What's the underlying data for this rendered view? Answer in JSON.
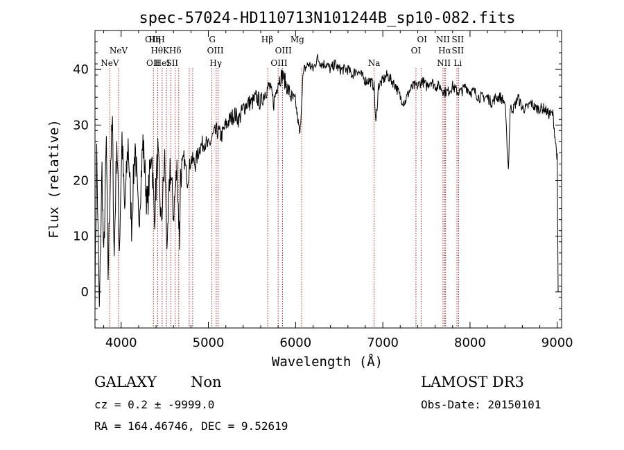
{
  "chart_data": {
    "type": "line",
    "title": "spec-57024-HD110713N101244B_sp10-082.fits",
    "xlabel": "Wavelength (Å)",
    "ylabel": "Flux (relative)",
    "xlim": [
      3700,
      9050
    ],
    "ylim": [
      -6.5,
      47
    ],
    "x_ticks": [
      4000,
      5000,
      6000,
      7000,
      8000,
      9000
    ],
    "y_ticks": [
      0,
      10,
      20,
      30,
      40
    ],
    "series": [
      {
        "name": "flux",
        "color": "#000000",
        "anchors": [
          [
            3700,
            0
          ],
          [
            3720,
            25
          ],
          [
            3750,
            -4
          ],
          [
            3780,
            22
          ],
          [
            3800,
            5
          ],
          [
            3830,
            27
          ],
          [
            3850,
            3
          ],
          [
            3880,
            24
          ],
          [
            3900,
            30
          ],
          [
            3920,
            6
          ],
          [
            3950,
            28
          ],
          [
            3980,
            8
          ],
          [
            4010,
            28
          ],
          [
            4040,
            14
          ],
          [
            4080,
            27
          ],
          [
            4120,
            12
          ],
          [
            4160,
            27
          ],
          [
            4200,
            12
          ],
          [
            4250,
            27
          ],
          [
            4300,
            15
          ],
          [
            4350,
            26
          ],
          [
            4380,
            13
          ],
          [
            4420,
            25
          ],
          [
            4460,
            12
          ],
          [
            4500,
            24
          ],
          [
            4530,
            6
          ],
          [
            4560,
            23
          ],
          [
            4600,
            14
          ],
          [
            4640,
            22
          ],
          [
            4670,
            9
          ],
          [
            4680,
            21
          ],
          [
            4720,
            24
          ],
          [
            4760,
            20
          ],
          [
            4800,
            24
          ],
          [
            4850,
            23
          ],
          [
            4900,
            26
          ],
          [
            4960,
            27
          ],
          [
            5000,
            26
          ],
          [
            5050,
            28
          ],
          [
            5100,
            29
          ],
          [
            5150,
            28
          ],
          [
            5200,
            30
          ],
          [
            5250,
            31
          ],
          [
            5300,
            32
          ],
          [
            5350,
            31
          ],
          [
            5400,
            33
          ],
          [
            5450,
            34
          ],
          [
            5500,
            34
          ],
          [
            5550,
            35
          ],
          [
            5600,
            34
          ],
          [
            5650,
            36
          ],
          [
            5700,
            37
          ],
          [
            5750,
            34
          ],
          [
            5800,
            38
          ],
          [
            5850,
            39
          ],
          [
            5900,
            37
          ],
          [
            5950,
            35
          ],
          [
            6000,
            34
          ],
          [
            6050,
            28
          ],
          [
            6080,
            38
          ],
          [
            6100,
            40
          ],
          [
            6150,
            41
          ],
          [
            6200,
            40
          ],
          [
            6250,
            42
          ],
          [
            6300,
            41
          ],
          [
            6350,
            41
          ],
          [
            6400,
            40
          ],
          [
            6450,
            41
          ],
          [
            6500,
            40
          ],
          [
            6550,
            40
          ],
          [
            6600,
            40
          ],
          [
            6650,
            39
          ],
          [
            6700,
            40
          ],
          [
            6750,
            39
          ],
          [
            6800,
            38
          ],
          [
            6850,
            38
          ],
          [
            6900,
            37
          ],
          [
            6920,
            30
          ],
          [
            6950,
            37
          ],
          [
            7000,
            38
          ],
          [
            7050,
            39
          ],
          [
            7100,
            38
          ],
          [
            7150,
            37
          ],
          [
            7200,
            35
          ],
          [
            7250,
            34
          ],
          [
            7300,
            36
          ],
          [
            7350,
            37
          ],
          [
            7400,
            37
          ],
          [
            7450,
            38
          ],
          [
            7500,
            37
          ],
          [
            7550,
            38
          ],
          [
            7600,
            37
          ],
          [
            7650,
            37
          ],
          [
            7700,
            36
          ],
          [
            7750,
            36
          ],
          [
            7800,
            37
          ],
          [
            7850,
            36
          ],
          [
            7900,
            36
          ],
          [
            7950,
            37
          ],
          [
            8000,
            36
          ],
          [
            8050,
            36
          ],
          [
            8100,
            35
          ],
          [
            8150,
            35
          ],
          [
            8200,
            35
          ],
          [
            8250,
            34
          ],
          [
            8300,
            35
          ],
          [
            8350,
            35
          ],
          [
            8400,
            34
          ],
          [
            8440,
            22
          ],
          [
            8460,
            33
          ],
          [
            8500,
            33
          ],
          [
            8550,
            35
          ],
          [
            8600,
            33
          ],
          [
            8650,
            33
          ],
          [
            8700,
            34
          ],
          [
            8750,
            33
          ],
          [
            8800,
            33
          ],
          [
            8850,
            33
          ],
          [
            8900,
            32
          ],
          [
            8950,
            32
          ],
          [
            8980,
            27
          ],
          [
            9000,
            24
          ],
          [
            9010,
            0
          ]
        ]
      }
    ],
    "line_markers": [
      {
        "label": "NeV",
        "wavelength": 3870,
        "row": 3
      },
      {
        "label": "NeV",
        "wavelength": 3970,
        "row": 2
      },
      {
        "label": "OII",
        "wavelength": 4350,
        "row": 1
      },
      {
        "label": "Hη",
        "wavelength": 4385,
        "row": 1
      },
      {
        "label": "H",
        "wavelength": 4460,
        "row": 1
      },
      {
        "label": "Hθ",
        "wavelength": 4410,
        "row": 2
      },
      {
        "label": "K",
        "wavelength": 4515,
        "row": 2
      },
      {
        "label": "Hδ",
        "wavelength": 4620,
        "row": 2
      },
      {
        "label": "OII",
        "wavelength": 4365,
        "row": 3
      },
      {
        "label": "HeI",
        "wavelength": 4470,
        "row": 3
      },
      {
        "label": "SII",
        "wavelength": 4585,
        "row": 3
      },
      {
        "label": "G",
        "wavelength": 5045,
        "row": 1
      },
      {
        "label": "OIII",
        "wavelength": 5080,
        "row": 2
      },
      {
        "label": "Hγ",
        "wavelength": 5085,
        "row": 3
      },
      {
        "label": "Hβ",
        "wavelength": 5675,
        "row": 1
      },
      {
        "label": "Mg",
        "wavelength": 6020,
        "row": 1
      },
      {
        "label": "OIII",
        "wavelength": 5860,
        "row": 2
      },
      {
        "label": "OIII",
        "wavelength": 5810,
        "row": 3
      },
      {
        "label": "Na",
        "wavelength": 6900,
        "row": 3
      },
      {
        "label": "OI",
        "wavelength": 7450,
        "row": 1
      },
      {
        "label": "OI",
        "wavelength": 7380,
        "row": 2
      },
      {
        "label": "NII",
        "wavelength": 7690,
        "row": 1
      },
      {
        "label": "SII",
        "wavelength": 7860,
        "row": 1
      },
      {
        "label": "Hα",
        "wavelength": 7710,
        "row": 2
      },
      {
        "label": "SII",
        "wavelength": 7860,
        "row": 2
      },
      {
        "label": "NII",
        "wavelength": 7700,
        "row": 3
      },
      {
        "label": "Li",
        "wavelength": 7860,
        "row": 3
      }
    ],
    "marker_lines": [
      3870,
      3970,
      4370,
      4420,
      4470,
      4520,
      4570,
      4620,
      4660,
      4780,
      4820,
      5040,
      5090,
      5110,
      5680,
      5800,
      5850,
      6070,
      6900,
      7380,
      7440,
      7690,
      7710,
      7720,
      7850,
      7870
    ]
  },
  "footer": {
    "class_label": "GALAXY",
    "subclass_label": "Non",
    "survey": "LAMOST DR3",
    "cz_text": "cz = 0.2 ± -9999.0",
    "obs_date": "Obs-Date: 20150101",
    "radec_text": "RA = 164.46746, DEC =    9.52619"
  },
  "colors": {
    "axis": "#000000",
    "spectrum": "#000000",
    "marker_line": "#b22222"
  }
}
